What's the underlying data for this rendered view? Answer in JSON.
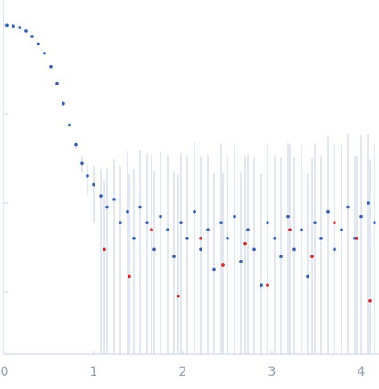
{
  "chart_data": {
    "type": "scatter",
    "log_y": true,
    "xlim": [
      0,
      4.2
    ],
    "ylim": [
      0.0002,
      1.9
    ],
    "xticks": [
      0,
      1,
      2,
      3,
      4
    ],
    "yticks": [
      1,
      0.1,
      0.01,
      0.001
    ],
    "error_color": "#c3d2ea",
    "series": [
      {
        "color": "#2f5fb8",
        "x": [
          0.03,
          0.1,
          0.17,
          0.24,
          0.31,
          0.38,
          0.45,
          0.52,
          0.59,
          0.66,
          0.73,
          0.8,
          0.87,
          0.93,
          1.0,
          1.08,
          1.15,
          1.23,
          1.3,
          1.38,
          1.45,
          1.52,
          1.6,
          1.68,
          1.75,
          1.83,
          1.9,
          1.98,
          2.05,
          2.13,
          2.2,
          2.28,
          2.35,
          2.43,
          2.5,
          2.58,
          2.65,
          2.73,
          2.8,
          2.88,
          2.95,
          3.03,
          3.1,
          3.18,
          3.25,
          3.33,
          3.4,
          3.48,
          3.55,
          3.63,
          3.7,
          3.78,
          3.85,
          3.93,
          4.0,
          4.08,
          4.15
        ],
        "values": [
          0.99,
          0.97,
          0.93,
          0.85,
          0.74,
          0.61,
          0.48,
          0.34,
          0.22,
          0.13,
          0.075,
          0.045,
          0.028,
          0.02,
          0.016,
          0.012,
          0.009,
          0.011,
          0.006,
          0.008,
          0.004,
          0.009,
          0.006,
          0.003,
          0.007,
          0.005,
          0.0025,
          0.006,
          0.004,
          0.008,
          0.003,
          0.005,
          0.0018,
          0.006,
          0.004,
          0.007,
          0.0022,
          0.005,
          0.003,
          0.0012,
          0.006,
          0.004,
          0.0025,
          0.007,
          0.003,
          0.005,
          0.0015,
          0.006,
          0.004,
          0.008,
          0.003,
          0.005,
          0.009,
          0.004,
          0.007,
          0.01,
          0.006
        ],
        "errors": [
          0.01,
          0.01,
          0.01,
          0.01,
          0.01,
          0.01,
          0.01,
          0.01,
          0.01,
          0.01,
          0.005,
          0.004,
          0.006,
          0.008,
          0.01,
          0.012,
          0.015,
          0.02,
          0.02,
          0.03,
          0.02,
          0.03,
          0.03,
          0.02,
          0.03,
          0.03,
          0.02,
          0.03,
          0.03,
          0.04,
          0.03,
          0.03,
          0.02,
          0.04,
          0.03,
          0.04,
          0.02,
          0.03,
          0.03,
          0.02,
          0.04,
          0.03,
          0.03,
          0.04,
          0.03,
          0.04,
          0.02,
          0.04,
          0.03,
          0.05,
          0.03,
          0.04,
          0.05,
          0.03,
          0.05,
          0.05,
          0.04
        ]
      },
      {
        "color": "#d62728",
        "x": [
          1.12,
          1.4,
          1.65,
          1.95,
          2.2,
          2.45,
          2.7,
          2.95,
          3.2,
          3.45,
          3.7,
          3.95,
          4.1
        ],
        "values": [
          0.003,
          0.0015,
          0.005,
          0.0009,
          0.004,
          0.002,
          0.0035,
          0.0012,
          0.005,
          0.0025,
          0.006,
          0.004,
          0.0008
        ],
        "errors": [
          0.015,
          0.02,
          0.03,
          0.02,
          0.03,
          0.02,
          0.03,
          0.02,
          0.04,
          0.03,
          0.04,
          0.03,
          0.03
        ]
      }
    ]
  }
}
